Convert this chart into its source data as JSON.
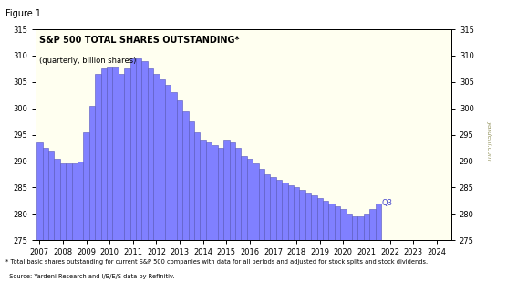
{
  "title_figure": "Figure 1.",
  "title_main": "S&P 500 TOTAL SHARES OUTSTANDING*",
  "title_sub": "(quarterly, billion shares)",
  "bar_color": "#8080ff",
  "bar_edge_color": "#5555bb",
  "background_color": "#fffff0",
  "outer_background": "#ffffff",
  "ylim": [
    275,
    315
  ],
  "yticks": [
    275,
    280,
    285,
    290,
    295,
    300,
    305,
    310,
    315
  ],
  "footnote_line1": "* Total basic shares outstanding for current S&P 500 companies with data for all periods and adjusted for stock splits and stock dividends.",
  "footnote_line2": "  Source: Yardeni Research and I/B/E/S data by Refinitiv.",
  "annotation_text": "Q3",
  "annotation_color": "#4444cc",
  "watermark": "yardeni.com",
  "year_labels": [
    "2007",
    "2008",
    "2009",
    "2010",
    "2011",
    "2012",
    "2013",
    "2014",
    "2015",
    "2016",
    "2017",
    "2018",
    "2019",
    "2020",
    "2021",
    "2022",
    "2023",
    "2024"
  ],
  "values": [
    293.5,
    292.5,
    292.0,
    290.5,
    289.5,
    289.5,
    289.5,
    290.0,
    295.5,
    300.5,
    306.5,
    307.5,
    308.0,
    308.0,
    306.5,
    307.5,
    309.5,
    309.5,
    309.0,
    307.5,
    306.5,
    305.5,
    304.5,
    303.0,
    301.5,
    299.5,
    297.5,
    295.5,
    294.0,
    293.5,
    293.0,
    292.5,
    294.0,
    293.5,
    292.5,
    291.0,
    290.5,
    289.5,
    288.5,
    287.5,
    287.0,
    286.5,
    286.0,
    285.5,
    285.0,
    284.5,
    284.0,
    283.5,
    283.0,
    282.5,
    282.0,
    281.5,
    281.0,
    280.0,
    279.5,
    279.5,
    280.0,
    281.0,
    282.0
  ]
}
